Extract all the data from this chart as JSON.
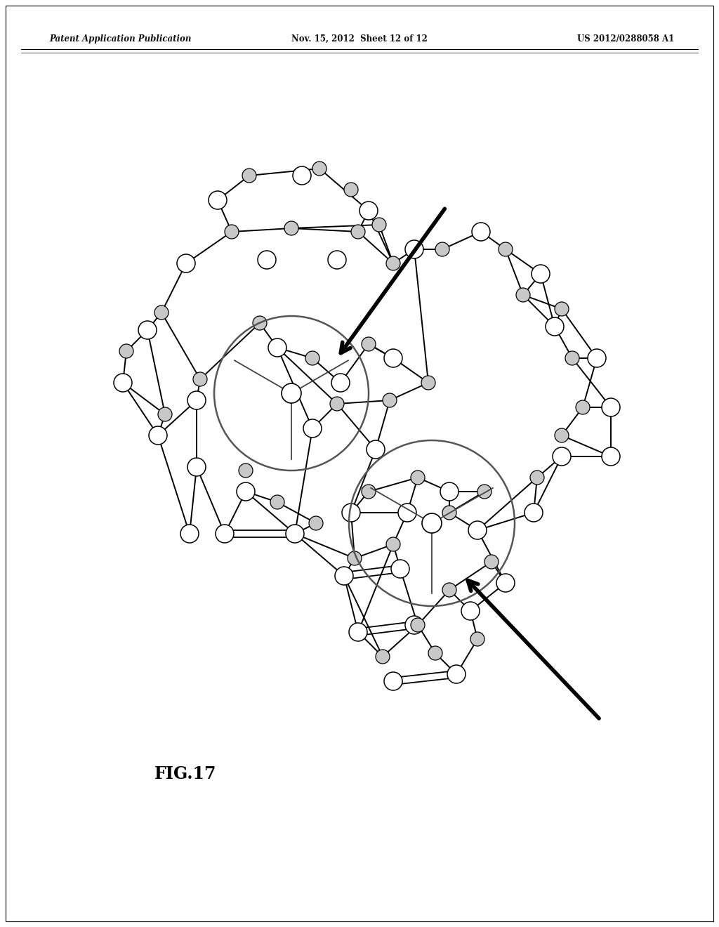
{
  "title_left": "Patent Application Publication",
  "title_mid": "Nov. 15, 2012  Sheet 12 of 12",
  "title_right": "US 2012/0288058 A1",
  "fig_label": "FIG.17",
  "bg_color": "#ffffff",
  "line_color": "#000000",
  "node_fill_white": "#ffffff",
  "node_fill_gray": "#c8c8c8",
  "node_edge_color": "#000000"
}
